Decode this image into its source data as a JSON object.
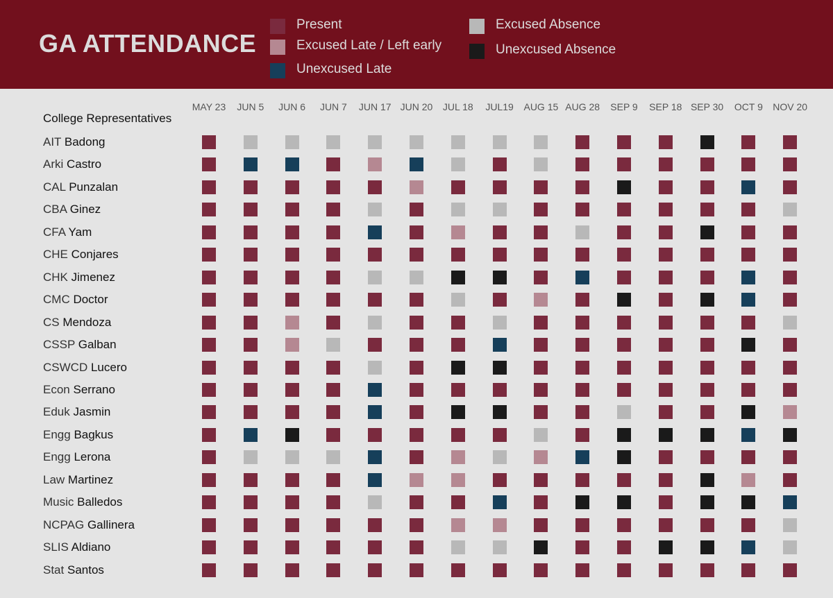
{
  "header": {
    "title": "GA ATTENDANCE"
  },
  "legend": [
    {
      "label": "Present",
      "code": "P",
      "color": "#7a2a3e"
    },
    {
      "label": "Excused Late / Left early",
      "code": "EL",
      "color": "#b58892"
    },
    {
      "label": "Unexcused Late",
      "code": "UL",
      "color": "#163f5a"
    },
    {
      "label": "Excused Absence",
      "code": "EA",
      "color": "#b8b8b8"
    },
    {
      "label": "Unexcused Absence",
      "code": "UA",
      "color": "#1a1a1a"
    }
  ],
  "chart_data": {
    "type": "heatmap",
    "row_header": "College Representatives",
    "columns": [
      "MAY 23",
      "JUN 5",
      "JUN 6",
      "JUN 7",
      "JUN 17",
      "JUN 20",
      "JUL 18",
      "JUL19",
      "AUG 15",
      "AUG 28",
      "SEP 9",
      "SEP 18",
      "SEP 30",
      "OCT 9",
      "NOV 20"
    ],
    "rows": [
      {
        "college": "AIT",
        "name": "Badong",
        "values": [
          "P",
          "EA",
          "EA",
          "EA",
          "EA",
          "EA",
          "EA",
          "EA",
          "EA",
          "P",
          "P",
          "P",
          "UA",
          "P",
          "P"
        ]
      },
      {
        "college": "Arki",
        "name": "Castro",
        "values": [
          "P",
          "UL",
          "UL",
          "P",
          "EL",
          "UL",
          "EA",
          "P",
          "EA",
          "P",
          "P",
          "P",
          "P",
          "P",
          "P"
        ]
      },
      {
        "college": "CAL",
        "name": "Punzalan",
        "values": [
          "P",
          "P",
          "P",
          "P",
          "P",
          "EL",
          "P",
          "P",
          "P",
          "P",
          "UA",
          "P",
          "P",
          "UL",
          "P"
        ]
      },
      {
        "college": "CBA",
        "name": "Ginez",
        "values": [
          "P",
          "P",
          "P",
          "P",
          "EA",
          "P",
          "EA",
          "EA",
          "P",
          "P",
          "P",
          "P",
          "P",
          "P",
          "EA"
        ]
      },
      {
        "college": "CFA",
        "name": "Yam",
        "values": [
          "P",
          "P",
          "P",
          "P",
          "UL",
          "P",
          "EL",
          "P",
          "P",
          "EA",
          "P",
          "P",
          "UA",
          "P",
          "P"
        ]
      },
      {
        "college": "CHE",
        "name": "Conjares",
        "values": [
          "P",
          "P",
          "P",
          "P",
          "P",
          "P",
          "P",
          "P",
          "P",
          "P",
          "P",
          "P",
          "P",
          "P",
          "P"
        ]
      },
      {
        "college": "CHK",
        "name": "Jimenez",
        "values": [
          "P",
          "P",
          "P",
          "P",
          "EA",
          "EA",
          "UA",
          "UA",
          "P",
          "UL",
          "P",
          "P",
          "P",
          "UL",
          "P"
        ]
      },
      {
        "college": "CMC",
        "name": "Doctor",
        "values": [
          "P",
          "P",
          "P",
          "P",
          "P",
          "P",
          "EA",
          "P",
          "EL",
          "P",
          "UA",
          "P",
          "UA",
          "UL",
          "P"
        ]
      },
      {
        "college": "CS",
        "name": "Mendoza",
        "values": [
          "P",
          "P",
          "EL",
          "P",
          "EA",
          "P",
          "P",
          "EA",
          "P",
          "P",
          "P",
          "P",
          "P",
          "P",
          "EA"
        ]
      },
      {
        "college": "CSSP",
        "name": "Galban",
        "values": [
          "P",
          "P",
          "EL",
          "EA",
          "P",
          "P",
          "P",
          "UL",
          "P",
          "P",
          "P",
          "P",
          "P",
          "UA",
          "P"
        ]
      },
      {
        "college": "CSWCD",
        "name": "Lucero",
        "values": [
          "P",
          "P",
          "P",
          "P",
          "EA",
          "P",
          "UA",
          "UA",
          "P",
          "P",
          "P",
          "P",
          "P",
          "P",
          "P"
        ]
      },
      {
        "college": "Econ",
        "name": "Serrano",
        "values": [
          "P",
          "P",
          "P",
          "P",
          "UL",
          "P",
          "P",
          "P",
          "P",
          "P",
          "P",
          "P",
          "P",
          "P",
          "P"
        ]
      },
      {
        "college": "Eduk",
        "name": "Jasmin",
        "values": [
          "P",
          "P",
          "P",
          "P",
          "UL",
          "P",
          "UA",
          "UA",
          "P",
          "P",
          "EA",
          "P",
          "P",
          "UA",
          "EL"
        ]
      },
      {
        "college": "Engg",
        "name": "Bagkus",
        "values": [
          "P",
          "UL",
          "UA",
          "P",
          "P",
          "P",
          "P",
          "P",
          "EA",
          "P",
          "UA",
          "UA",
          "UA",
          "UL",
          "UA"
        ]
      },
      {
        "college": "Engg",
        "name": "Lerona",
        "values": [
          "P",
          "EA",
          "EA",
          "EA",
          "UL",
          "P",
          "EL",
          "EA",
          "EL",
          "UL",
          "UA",
          "P",
          "P",
          "P",
          "P"
        ]
      },
      {
        "college": "Law",
        "name": "Martinez",
        "values": [
          "P",
          "P",
          "P",
          "P",
          "UL",
          "EL",
          "EL",
          "P",
          "P",
          "P",
          "P",
          "P",
          "UA",
          "EL",
          "P"
        ]
      },
      {
        "college": "Music",
        "name": "Balledos",
        "values": [
          "P",
          "P",
          "P",
          "P",
          "EA",
          "P",
          "P",
          "UL",
          "P",
          "UA",
          "UA",
          "P",
          "UA",
          "UA",
          "UL"
        ]
      },
      {
        "college": "NCPAG",
        "name": "Gallinera",
        "values": [
          "P",
          "P",
          "P",
          "P",
          "P",
          "P",
          "EL",
          "EL",
          "P",
          "P",
          "P",
          "P",
          "P",
          "P",
          "EA"
        ]
      },
      {
        "college": "SLIS",
        "name": "Aldiano",
        "values": [
          "P",
          "P",
          "P",
          "P",
          "P",
          "P",
          "EA",
          "EA",
          "UA",
          "P",
          "P",
          "UA",
          "UA",
          "UL",
          "EA"
        ]
      },
      {
        "college": "Stat",
        "name": "Santos",
        "values": [
          "P",
          "P",
          "P",
          "P",
          "P",
          "P",
          "P",
          "P",
          "P",
          "P",
          "P",
          "P",
          "P",
          "P",
          "P"
        ]
      }
    ]
  }
}
